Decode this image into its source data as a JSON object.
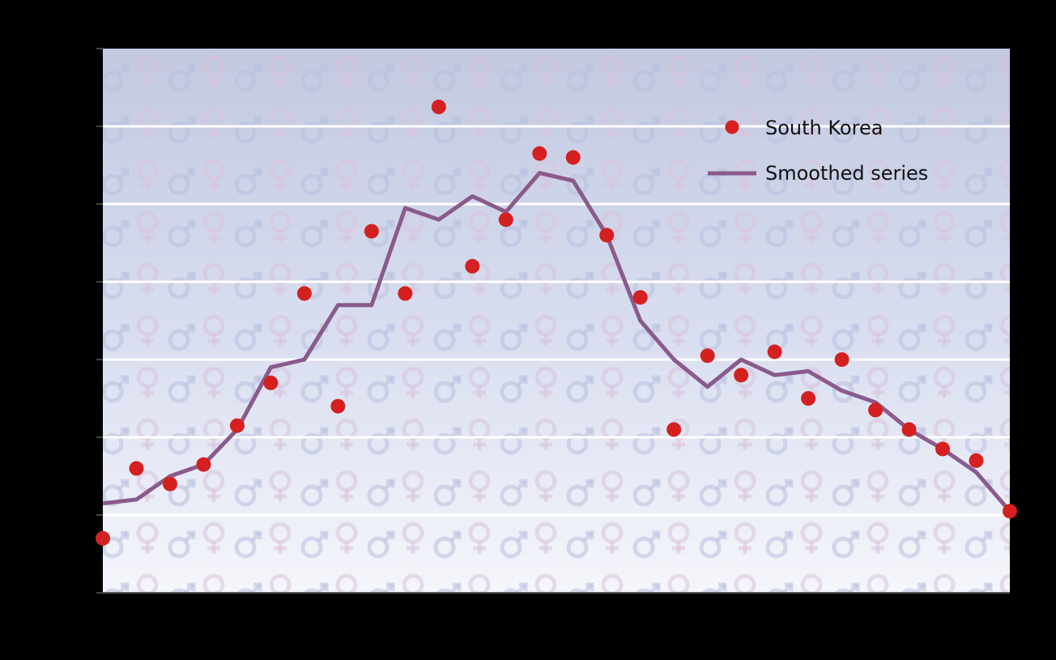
{
  "chart_data": {
    "type": "scatter",
    "title": "",
    "xlabel": "",
    "ylabel": "",
    "x": [
      1,
      2,
      3,
      4,
      5,
      6,
      7,
      8,
      9,
      10,
      11,
      12,
      13,
      14,
      15,
      16,
      17,
      18,
      19,
      20,
      21,
      22,
      23,
      24,
      25,
      26,
      27,
      28
    ],
    "xlim": [
      1,
      28
    ],
    "ylim": [
      0,
      7
    ],
    "grid": true,
    "legend_position": "top-right",
    "series": [
      {
        "name": "South Korea",
        "kind": "points",
        "color": "#d42020",
        "values": [
          0.7,
          1.6,
          1.4,
          1.65,
          2.15,
          2.7,
          3.85,
          2.4,
          4.65,
          3.85,
          6.25,
          4.2,
          4.8,
          5.65,
          5.6,
          4.6,
          3.8,
          2.1,
          3.05,
          2.8,
          3.1,
          2.5,
          3.0,
          2.35,
          2.1,
          1.85,
          1.7,
          1.05
        ]
      },
      {
        "name": "Smoothed series",
        "kind": "line",
        "color": "#8a5a8c",
        "values": [
          1.15,
          1.2,
          1.5,
          1.65,
          2.1,
          2.9,
          3.0,
          3.7,
          3.7,
          4.95,
          4.8,
          5.1,
          4.9,
          5.4,
          5.3,
          4.6,
          3.5,
          3.0,
          2.65,
          3.0,
          2.8,
          2.85,
          2.6,
          2.45,
          2.1,
          1.85,
          1.55,
          1.05
        ]
      }
    ]
  }
}
